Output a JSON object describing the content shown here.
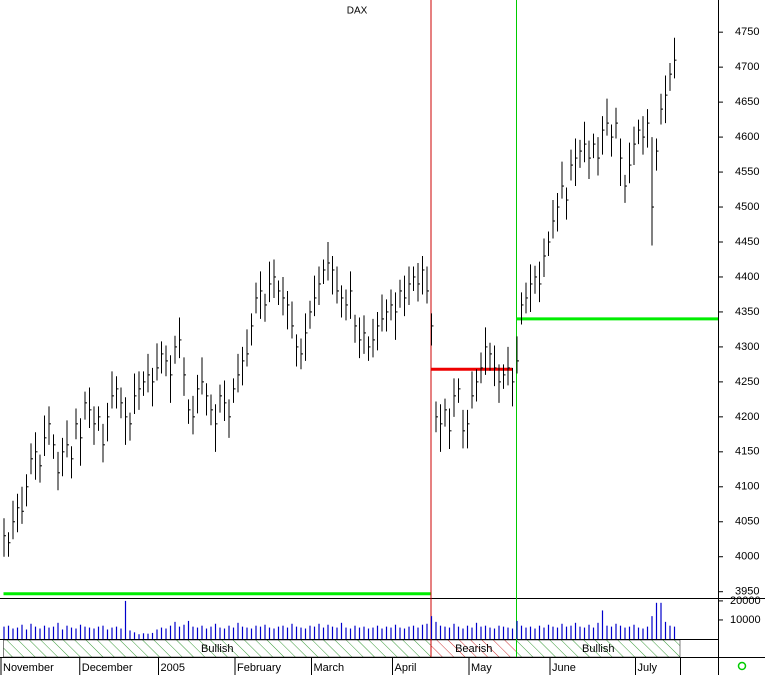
{
  "chart_data": {
    "type": "ohlc",
    "title": "DAX",
    "color": "#000000",
    "ylim": [
      3941,
      4796
    ],
    "yticks": [
      3950,
      4000,
      4050,
      4100,
      4150,
      4200,
      4250,
      4300,
      4350,
      4400,
      4450,
      4500,
      4550,
      4600,
      4650,
      4700,
      4750
    ],
    "xticks": [
      {
        "value": 0,
        "label": "November"
      },
      {
        "value": 17.5,
        "label": "December"
      },
      {
        "value": 35,
        "label": "2005"
      },
      {
        "value": 52,
        "label": "February"
      },
      {
        "value": 69,
        "label": "March"
      },
      {
        "value": 87,
        "label": "April"
      },
      {
        "value": 104,
        "label": "May"
      },
      {
        "value": 122,
        "label": "June"
      },
      {
        "value": 141,
        "label": "July"
      }
    ],
    "high": [
      4055,
      4035,
      4080,
      4090,
      4100,
      4118,
      4162,
      4178,
      4146,
      4202,
      4215,
      4175,
      4150,
      4170,
      4195,
      4158,
      4212,
      4198,
      4236,
      4242,
      4215,
      4215,
      4190,
      4220,
      4265,
      4258,
      4242,
      4228,
      4206,
      4262,
      4265,
      4265,
      4290,
      4270,
      4305,
      4308,
      4302,
      4288,
      4316,
      4342,
      4285,
      4225,
      4230,
      4260,
      4285,
      4248,
      4232,
      4218,
      4246,
      4252,
      4225,
      4255,
      4290,
      4300,
      4325,
      4348,
      4392,
      4408,
      4376,
      4422,
      4425,
      4395,
      4400,
      4380,
      4365,
      4318,
      4312,
      4348,
      4366,
      4402,
      4415,
      4425,
      4450,
      4430,
      4415,
      4388,
      4382,
      4408,
      4346,
      4342,
      4345,
      4315,
      4340,
      4350,
      4375,
      4368,
      4382,
      4378,
      4396,
      4402,
      4415,
      4415,
      4420,
      4430,
      4415,
      4348,
      4222,
      4218,
      4226,
      4212,
      4255,
      4255,
      4210,
      4210,
      4265,
      4268,
      4292,
      4328,
      4306,
      4302,
      4275,
      4275,
      4300,
      4270,
      4315,
      4378,
      4392,
      4418,
      4416,
      4422,
      4455,
      4465,
      4510,
      4520,
      4565,
      4528,
      4582,
      4598,
      4596,
      4622,
      4595,
      4605,
      4600,
      4630,
      4655,
      4618,
      4642,
      4598,
      4546,
      4592,
      4615,
      4625,
      4630,
      4640,
      4600,
      4598,
      4662,
      4688,
      4706,
      4742
    ],
    "low": [
      4000,
      4000,
      4025,
      4035,
      4047,
      4072,
      4118,
      4110,
      4106,
      4144,
      4160,
      4140,
      4095,
      4115,
      4142,
      4112,
      4168,
      4130,
      4196,
      4184,
      4160,
      4180,
      4135,
      4165,
      4212,
      4212,
      4198,
      4160,
      4166,
      4204,
      4210,
      4230,
      4235,
      4215,
      4252,
      4262,
      4258,
      4220,
      4276,
      4284,
      4230,
      4190,
      4175,
      4205,
      4232,
      4202,
      4188,
      4150,
      4206,
      4194,
      4170,
      4220,
      4235,
      4245,
      4272,
      4302,
      4348,
      4340,
      4336,
      4364,
      4370,
      4360,
      4345,
      4325,
      4312,
      4272,
      4268,
      4280,
      4326,
      4344,
      4360,
      4390,
      4395,
      4375,
      4362,
      4342,
      4338,
      4340,
      4306,
      4284,
      4290,
      4280,
      4285,
      4295,
      4322,
      4322,
      4338,
      4310,
      4356,
      4344,
      4360,
      4380,
      4365,
      4375,
      4362,
      4302,
      4178,
      4150,
      4186,
      4154,
      4200,
      4220,
      4155,
      4155,
      4212,
      4222,
      4248,
      4260,
      4266,
      4244,
      4220,
      4240,
      4245,
      4215,
      4262,
      4332,
      4348,
      4350,
      4376,
      4364,
      4400,
      4430,
      4455,
      4465,
      4512,
      4482,
      4538,
      4530,
      4556,
      4564,
      4540,
      4570,
      4545,
      4575,
      4602,
      4572,
      4598,
      4530,
      4506,
      4534,
      4560,
      4590,
      4575,
      4585,
      4445,
      4552,
      4618,
      4620,
      4666,
      4684
    ],
    "close": [
      4030,
      4020,
      4050,
      4070,
      4065,
      4100,
      4140,
      4150,
      4130,
      4170,
      4190,
      4160,
      4120,
      4150,
      4160,
      4140,
      4190,
      4170,
      4220,
      4210,
      4190,
      4200,
      4160,
      4200,
      4230,
      4240,
      4220,
      4200,
      4190,
      4230,
      4240,
      4250,
      4260,
      4250,
      4270,
      4290,
      4280,
      4260,
      4300,
      4310,
      4260,
      4210,
      4200,
      4240,
      4250,
      4230,
      4210,
      4190,
      4230,
      4220,
      4200,
      4240,
      4260,
      4280,
      4290,
      4330,
      4370,
      4380,
      4360,
      4390,
      4400,
      4380,
      4370,
      4360,
      4330,
      4300,
      4290,
      4320,
      4350,
      4370,
      4390,
      4410,
      4420,
      4410,
      4380,
      4370,
      4360,
      4380,
      4330,
      4310,
      4320,
      4300,
      4310,
      4330,
      4340,
      4350,
      4360,
      4350,
      4380,
      4370,
      4390,
      4400,
      4390,
      4410,
      4380,
      4330,
      4200,
      4190,
      4210,
      4180,
      4230,
      4240,
      4180,
      4190,
      4230,
      4250,
      4270,
      4300,
      4290,
      4270,
      4250,
      4260,
      4270,
      4250,
      4280,
      4360,
      4370,
      4390,
      4400,
      4390,
      4430,
      4450,
      4480,
      4500,
      4530,
      4510,
      4560,
      4570,
      4580,
      4590,
      4570,
      4590,
      4570,
      4610,
      4620,
      4600,
      4620,
      4570,
      4530,
      4560,
      4590,
      4610,
      4600,
      4620,
      4500,
      4580,
      4640,
      4660,
      4690,
      4710
    ],
    "volume": {
      "color": "#0000cc",
      "ylim": [
        0,
        21000
      ],
      "yticks": [
        10000,
        20000
      ],
      "values": [
        6500,
        7000,
        5500,
        6000,
        7500,
        5000,
        8000,
        6500,
        5500,
        7000,
        6000,
        6500,
        8500,
        5000,
        7000,
        6000,
        5500,
        7500,
        6500,
        6000,
        5500,
        6500,
        7000,
        5000,
        6000,
        6500,
        5500,
        20000,
        4500,
        3500,
        2500,
        3000,
        2800,
        3200,
        5000,
        6000,
        5500,
        7000,
        9000,
        6500,
        7500,
        9500,
        6500,
        6000,
        7000,
        5500,
        6500,
        8000,
        6000,
        5500,
        7000,
        6000,
        8500,
        6500,
        6000,
        5500,
        7000,
        6500,
        7500,
        6000,
        5500,
        6500,
        7000,
        6000,
        8000,
        6500,
        6000,
        5500,
        7000,
        6500,
        8000,
        6000,
        7500,
        6500,
        6000,
        8500,
        6000,
        5500,
        7000,
        6000,
        6500,
        5500,
        6000,
        7000,
        5500,
        6500,
        6000,
        7500,
        6000,
        5500,
        6500,
        7000,
        6000,
        7500,
        8000,
        12000,
        9000,
        7000,
        6500,
        6000,
        8000,
        6500,
        5500,
        7000,
        6000,
        8500,
        6500,
        7000,
        6000,
        5500,
        7000,
        6500,
        6000,
        5500,
        9500,
        7000,
        6000,
        6500,
        5500,
        7000,
        6000,
        7500,
        6500,
        6000,
        8000,
        6500,
        7000,
        8500,
        6500,
        6000,
        7500,
        6000,
        8500,
        15000,
        7000,
        6500,
        8000,
        7000,
        6000,
        6500,
        7500,
        6000,
        5500,
        6500,
        12000,
        19000,
        19000,
        9000,
        7000,
        6500
      ]
    },
    "regimes": [
      {
        "label": "Bullish",
        "start": 0,
        "end": 95,
        "level": 3947,
        "color": "#00ee00",
        "signal": "#00ee00"
      },
      {
        "label": "Bearish",
        "start": 95,
        "end": 113,
        "level": 4268,
        "color": "#ee0000",
        "signal": "#cc0000"
      },
      {
        "label": "Bullish",
        "start": 114,
        "end": 150,
        "level": 4340,
        "color": "#00ee00",
        "signal": "#00cc00"
      }
    ]
  }
}
